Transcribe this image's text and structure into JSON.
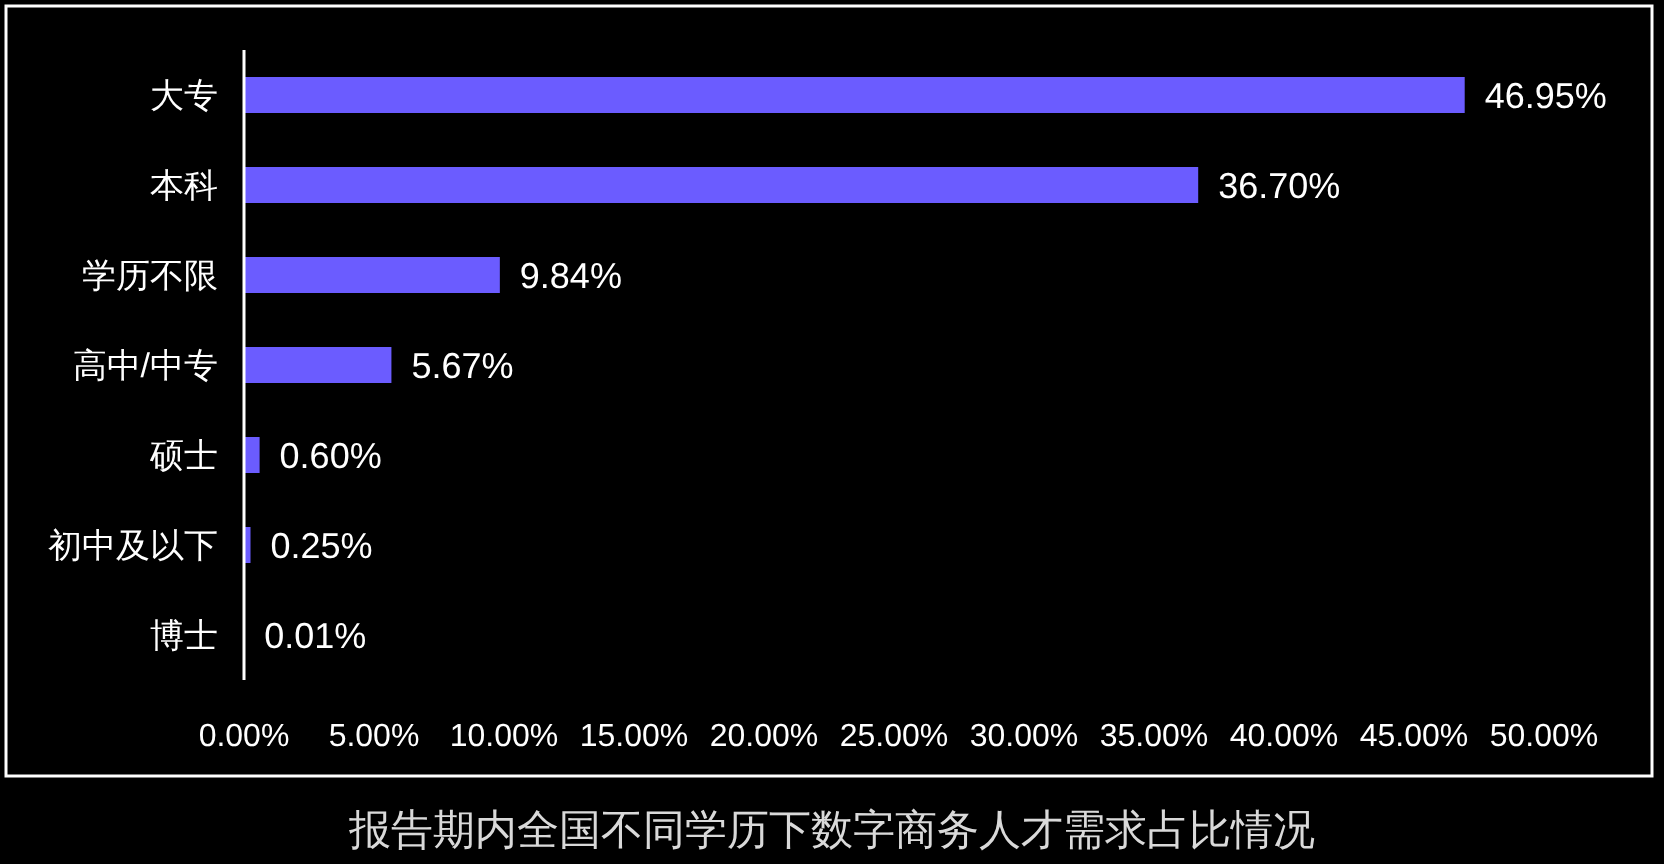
{
  "chart_data": {
    "type": "bar",
    "orientation": "horizontal",
    "title": "报告期内全国不同学历下数字商务人才需求占比情况",
    "categories": [
      "大专",
      "本科",
      "学历不限",
      "高中/中专",
      "硕士",
      "初中及以下",
      "博士"
    ],
    "values": [
      46.95,
      36.7,
      9.84,
      5.67,
      0.6,
      0.25,
      0.01
    ],
    "value_labels": [
      "46.95%",
      "36.70%",
      "9.84%",
      "5.67%",
      "0.60%",
      "0.25%",
      "0.01%"
    ],
    "color": "#6b5cff",
    "xlim": [
      0,
      50
    ],
    "xticks": [
      {
        "value": 0,
        "label": "0.00%"
      },
      {
        "value": 5,
        "label": "5.00%"
      },
      {
        "value": 10,
        "label": "10.00%"
      },
      {
        "value": 15,
        "label": "15.00%"
      },
      {
        "value": 20,
        "label": "20.00%"
      },
      {
        "value": 25,
        "label": "25.00%"
      },
      {
        "value": 30,
        "label": "30.00%"
      },
      {
        "value": 35,
        "label": "35.00%"
      },
      {
        "value": 40,
        "label": "40.00%"
      },
      {
        "value": 45,
        "label": "45.00%"
      },
      {
        "value": 50,
        "label": "50.00%"
      }
    ],
    "grid": false
  }
}
